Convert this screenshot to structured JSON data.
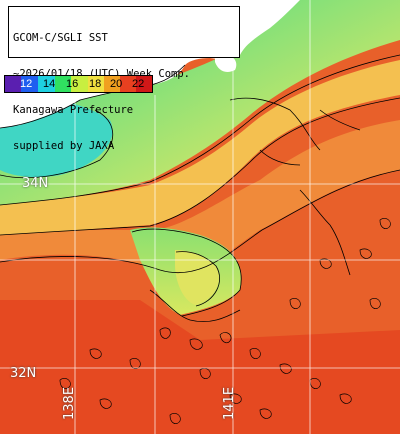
{
  "title": {
    "lines": [
      "GCOM-C/SGLI SST",
      "~2026/01/18 (UTC) Week Comp.",
      "Kanagawa Prefecture",
      "supplied by JAXA"
    ]
  },
  "legend": {
    "ticks": [
      "12",
      "14",
      "16",
      "18",
      "20",
      "22"
    ],
    "colors": [
      "#5a1fb0",
      "#1f5ef0",
      "#1ed0e0",
      "#30e060",
      "#c8ef40",
      "#f0e040",
      "#f0a020",
      "#e84020",
      "#d01818"
    ]
  },
  "grid_labels": {
    "lat_35": "34N",
    "lat_32": "32N",
    "lon_138": "138E",
    "lon_141": "141E"
  },
  "colors": {
    "land": "#ffffff",
    "sea_warm": "#e8602a",
    "sea_hot": "#e23a1c",
    "sea_mid": "#f4a84a",
    "sea_cool": "#c8e66a",
    "sea_cold": "#5ad8b8",
    "contour": "#000000",
    "grid": "#ffffff"
  }
}
